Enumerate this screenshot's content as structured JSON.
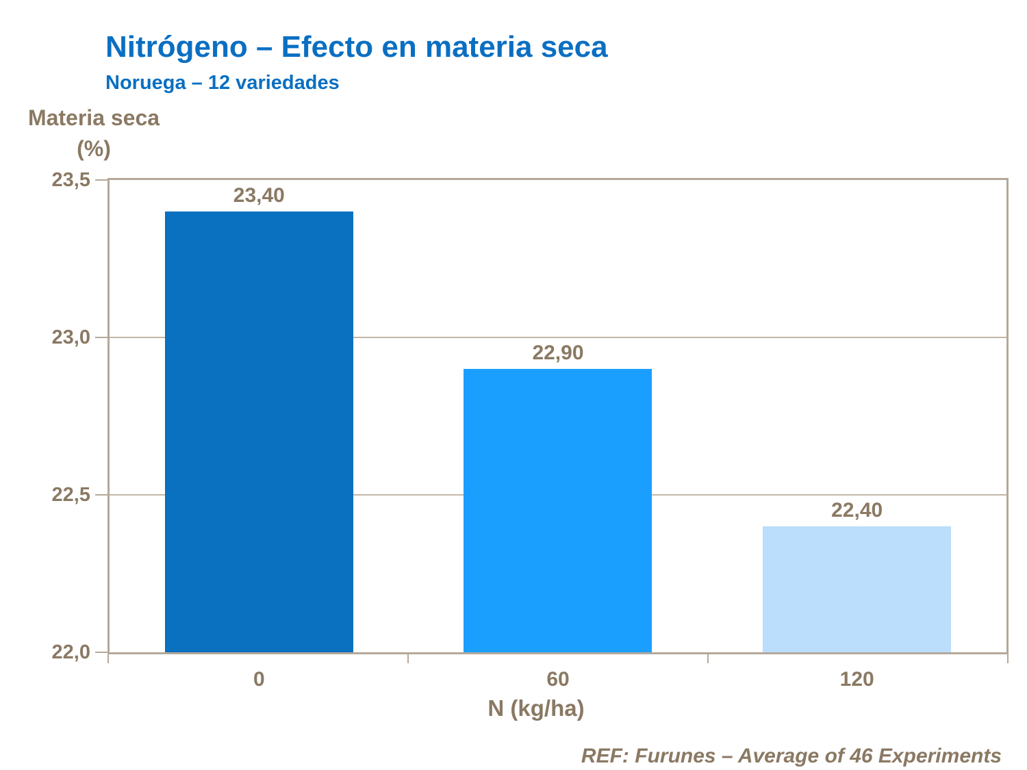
{
  "header": {
    "title": "Nitrógeno – Efecto en materia seca",
    "subtitle": "Noruega – 12 variedades"
  },
  "axes": {
    "y_title_line1": "Materia seca",
    "y_title_line2": "(%)",
    "x_title": "N (kg/ha)"
  },
  "footer": {
    "text": "REF: Furunes – Average of 46 Experiments"
  },
  "colors": {
    "title_blue": "#0a6fc2",
    "text_brown": "#8a7963",
    "axis_tan": "#b4a89a",
    "gridline_tan": "#c3b7a8",
    "bar_dark_blue": "#0a70c0",
    "bar_bright_blue": "#1b9fff",
    "bar_light_blue": "#badefb",
    "background": "#ffffff"
  },
  "chart_data": {
    "type": "bar",
    "title": "Nitrógeno – Efecto en materia seca",
    "subtitle": "Noruega – 12 variedades",
    "xlabel": "N (kg/ha)",
    "ylabel": "Materia seca (%)",
    "categories": [
      "0",
      "60",
      "120"
    ],
    "values": [
      23.4,
      22.9,
      22.4
    ],
    "value_labels": [
      "23,40",
      "22,90",
      "22,40"
    ],
    "bar_colors": [
      "#0a70c0",
      "#1b9fff",
      "#badefb"
    ],
    "ylim": [
      22.0,
      23.5
    ],
    "ytick_values": [
      23.5,
      23.0,
      22.5,
      22.0
    ],
    "ytick_labels": [
      "23,5",
      "23,0",
      "22,5",
      "22,0"
    ],
    "gridline_values": [
      23.0,
      22.5
    ],
    "grid": true,
    "legend_position": "none",
    "annotation": "REF: Furunes – Average of 46 Experiments"
  }
}
